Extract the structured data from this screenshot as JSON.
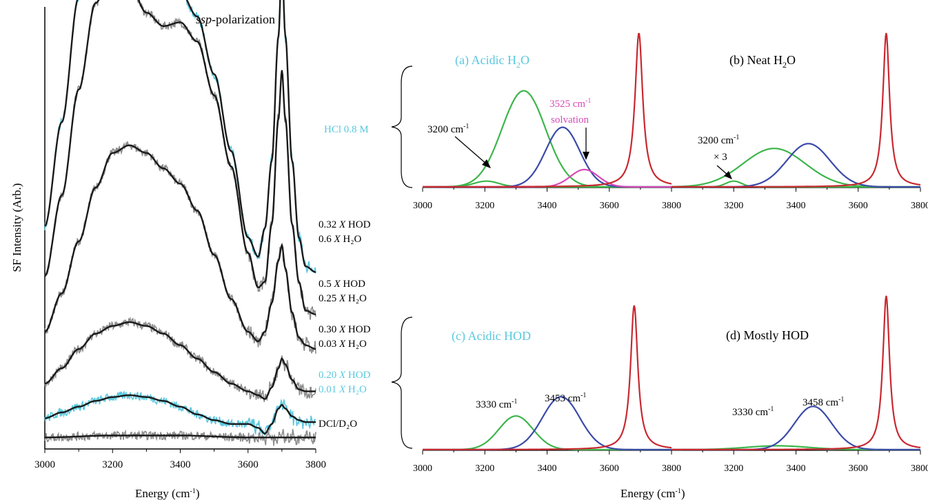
{
  "colors": {
    "black_fit": "#1a1a1a",
    "gray_data": "#8c8c8c",
    "cyan": "#5bc8de",
    "green": "#3cb54a",
    "blue": "#3a4aa8",
    "red": "#c82830",
    "magenta": "#d64ab8"
  },
  "chart_data": [
    {
      "id": "left",
      "type": "line",
      "title": "ssp-polarization",
      "xlabel": "Energy (cm⁻¹)",
      "ylabel": "SF Intensity (Arb.)",
      "xlim": [
        3000,
        3800
      ],
      "xticks": [
        "3000",
        "3200",
        "3400",
        "3600",
        "3800"
      ],
      "series": [
        {
          "name": "HCl 0.8 M",
          "label_lines": [
            "HCl 0.8 M"
          ],
          "color": "cyan",
          "baseline": 0.7,
          "x": [
            3000,
            3050,
            3100,
            3150,
            3200,
            3250,
            3300,
            3350,
            3400,
            3450,
            3500,
            3550,
            3600,
            3630,
            3650,
            3670,
            3690,
            3700,
            3710,
            3730,
            3750,
            3770,
            3800
          ],
          "y": [
            0.46,
            1.0,
            1.65,
            2.1,
            2.15,
            1.95,
            1.78,
            1.7,
            1.68,
            1.55,
            1.25,
            0.85,
            0.4,
            0.3,
            0.45,
            0.8,
            1.45,
            1.85,
            1.45,
            0.8,
            0.4,
            0.25,
            0.22
          ]
        },
        {
          "name": "0.32 X HOD 0.6 X H2O",
          "label_lines": [
            "0.32 X HOD",
            "0.6 X H₂O"
          ],
          "color": "gray",
          "baseline": 0.52,
          "x": [
            3000,
            3050,
            3100,
            3150,
            3200,
            3250,
            3300,
            3350,
            3400,
            3450,
            3500,
            3550,
            3600,
            3630,
            3650,
            3670,
            3690,
            3700,
            3710,
            3730,
            3750,
            3770,
            3800
          ],
          "y": [
            0.38,
            0.8,
            1.35,
            1.8,
            1.98,
            1.9,
            1.75,
            1.68,
            1.7,
            1.6,
            1.32,
            0.95,
            0.5,
            0.32,
            0.35,
            0.65,
            1.2,
            1.45,
            1.2,
            0.65,
            0.35,
            0.2,
            0.18
          ]
        },
        {
          "name": "0.5 X HOD 0.25 X H2O",
          "label_lines": [
            "0.5 X HOD",
            "0.25 X H₂O"
          ],
          "color": "gray",
          "baseline": 0.36,
          "x": [
            3000,
            3050,
            3100,
            3150,
            3200,
            3250,
            3300,
            3350,
            3400,
            3450,
            3500,
            3550,
            3600,
            3630,
            3650,
            3670,
            3690,
            3700,
            3710,
            3730,
            3750,
            3770,
            3800
          ],
          "y": [
            0.25,
            0.45,
            0.72,
            1.0,
            1.18,
            1.22,
            1.18,
            1.1,
            1.02,
            0.88,
            0.65,
            0.42,
            0.25,
            0.2,
            0.25,
            0.4,
            0.62,
            0.7,
            0.58,
            0.35,
            0.22,
            0.18,
            0.16
          ]
        },
        {
          "name": "0.30 X HOD 0.03 X H2O",
          "label_lines": [
            "0.30 X HOD",
            "0.03 X H₂O"
          ],
          "color": "gray",
          "baseline": 0.22,
          "x": [
            3000,
            3050,
            3100,
            3150,
            3200,
            3250,
            3300,
            3350,
            3400,
            3450,
            3500,
            3550,
            3600,
            3630,
            3650,
            3670,
            3690,
            3700,
            3710,
            3730,
            3750,
            3770,
            3800
          ],
          "y": [
            0.12,
            0.2,
            0.3,
            0.38,
            0.42,
            0.44,
            0.42,
            0.38,
            0.32,
            0.25,
            0.18,
            0.12,
            0.08,
            0.06,
            0.04,
            0.1,
            0.2,
            0.25,
            0.22,
            0.14,
            0.09,
            0.08,
            0.08
          ]
        },
        {
          "name": "0.20 X HOD 0.01 X H2O",
          "label_lines": [
            "0.20 X HOD",
            "0.01 X H₂O"
          ],
          "color": "cyan",
          "baseline": 0.13,
          "x": [
            3000,
            3050,
            3100,
            3150,
            3200,
            3250,
            3300,
            3350,
            3400,
            3450,
            3500,
            3550,
            3600,
            3630,
            3650,
            3670,
            3690,
            3700,
            3710,
            3730,
            3750,
            3770,
            3800
          ],
          "y": [
            0.03,
            0.06,
            0.09,
            0.12,
            0.14,
            0.15,
            0.14,
            0.12,
            0.09,
            0.05,
            0.02,
            0.0,
            0.0,
            -0.02,
            -0.05,
            0.0,
            0.08,
            0.1,
            0.08,
            0.04,
            0.02,
            0.01,
            0.01
          ]
        },
        {
          "name": "DCl/D2O",
          "label_lines": [
            "DCl/D₂O"
          ],
          "color": "gray",
          "baseline": 0.06,
          "x": [
            3000,
            3200,
            3400,
            3600,
            3800
          ],
          "y": [
            0.0,
            0.01,
            0.01,
            0.0,
            0.0
          ]
        }
      ]
    },
    {
      "id": "a",
      "type": "line",
      "panel_label": "(a) Acidic H₂O",
      "label_color": "cyan",
      "xlim": [
        3000,
        3800
      ],
      "xticks": [
        "3000",
        "3200",
        "3400",
        "3600",
        "3800"
      ],
      "series": [
        {
          "color": "green",
          "peaks": [
            [
              3325,
              1.0,
              70
            ]
          ]
        },
        {
          "color": "green",
          "peaks": [
            [
              3205,
              0.06,
              40
            ]
          ]
        },
        {
          "color": "blue",
          "peaks": [
            [
              3450,
              0.62,
              55
            ]
          ]
        },
        {
          "color": "magenta",
          "peaks": [
            [
              3520,
              0.18,
              45
            ]
          ]
        },
        {
          "color": "red",
          "lorentz": [
            3695,
            1.6,
            15
          ]
        }
      ],
      "annotations": [
        {
          "text": "3200 cm",
          "sup": "-1",
          "color": "black"
        },
        {
          "text": "3525 cm",
          "sup": "-1",
          "text2": "solvation",
          "color": "magenta"
        }
      ]
    },
    {
      "id": "b",
      "type": "line",
      "panel_label": "(b) Neat H₂O",
      "label_color": "black",
      "xlim": [
        3000,
        3800
      ],
      "xticks": [
        "3200",
        "3400",
        "3600",
        "3800"
      ],
      "series": [
        {
          "color": "green",
          "peaks": [
            [
              3330,
              0.4,
              100
            ]
          ]
        },
        {
          "color": "green",
          "peaks": [
            [
              3200,
              0.06,
              25
            ]
          ]
        },
        {
          "color": "blue",
          "peaks": [
            [
              3440,
              0.45,
              70
            ]
          ]
        },
        {
          "color": "red",
          "lorentz": [
            3690,
            1.6,
            13
          ]
        }
      ],
      "annotations": [
        {
          "text": "3200 cm",
          "sup": "-1",
          "text2": "× 3",
          "color": "black"
        }
      ]
    },
    {
      "id": "c",
      "type": "line",
      "panel_label": "(c) Acidic HOD",
      "label_color": "cyan",
      "xlim": [
        3000,
        3800
      ],
      "xticks": [
        "3000",
        "3200",
        "3400",
        "3600",
        "3800"
      ],
      "series": [
        {
          "color": "green",
          "peaks": [
            [
              3300,
              0.35,
              55
            ]
          ]
        },
        {
          "color": "blue",
          "peaks": [
            [
              3445,
              0.55,
              60
            ]
          ]
        },
        {
          "color": "red",
          "lorentz": [
            3680,
            1.5,
            14
          ]
        }
      ],
      "annotations": [
        {
          "text": "3330 cm",
          "sup": "-1",
          "color": "black"
        },
        {
          "text": "3453 cm",
          "sup": "-1",
          "color": "black"
        }
      ]
    },
    {
      "id": "d",
      "type": "line",
      "panel_label": "(d) Mostly HOD",
      "label_color": "black",
      "xlim": [
        3000,
        3800
      ],
      "xticks": [
        "3200",
        "3400",
        "3600",
        "3800"
      ],
      "series": [
        {
          "color": "green",
          "peaks": [
            [
              3340,
              0.04,
              100
            ]
          ]
        },
        {
          "color": "blue",
          "peaks": [
            [
              3455,
              0.45,
              60
            ]
          ]
        },
        {
          "color": "red",
          "lorentz": [
            3690,
            1.6,
            13
          ]
        }
      ],
      "annotations": [
        {
          "text": "3330 cm",
          "sup": "-1",
          "color": "black"
        },
        {
          "text": "3458 cm",
          "sup": "-1",
          "color": "black"
        }
      ]
    }
  ],
  "bottom_xlabel_right": "Energy (cm⁻¹)"
}
